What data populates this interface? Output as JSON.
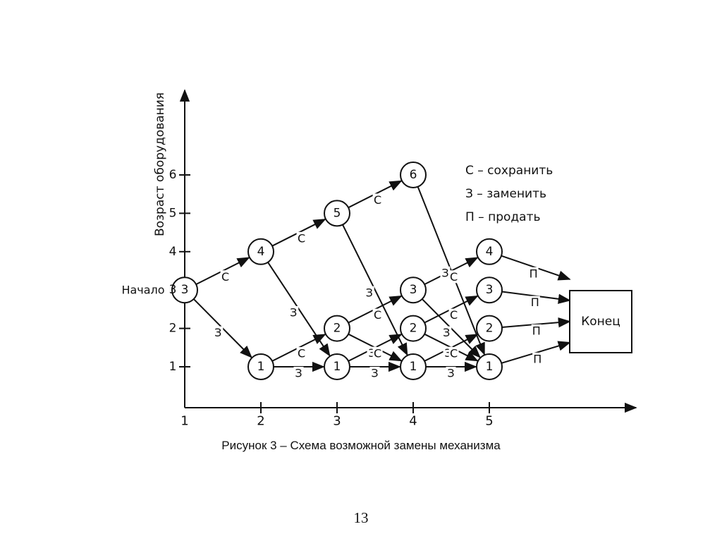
{
  "diagram": {
    "y_axis_label": "Возраст оборудования",
    "y_ticks": [
      "1",
      "2",
      "3",
      "4",
      "5",
      "6"
    ],
    "x_ticks": [
      "1",
      "2",
      "3",
      "4",
      "5"
    ],
    "start_label": "Начало",
    "end_label": "Конец",
    "legend": [
      "С – сохранить",
      "З – заменить",
      "П – продать"
    ],
    "nodes": [
      {
        "id": "s3",
        "stage": 1,
        "age": 3,
        "label": "3"
      },
      {
        "id": "a4",
        "stage": 2,
        "age": 4,
        "label": "4"
      },
      {
        "id": "a1",
        "stage": 2,
        "age": 1,
        "label": "1"
      },
      {
        "id": "b5",
        "stage": 3,
        "age": 5,
        "label": "5"
      },
      {
        "id": "b2",
        "stage": 3,
        "age": 2,
        "label": "2"
      },
      {
        "id": "b1",
        "stage": 3,
        "age": 1,
        "label": "1"
      },
      {
        "id": "c6",
        "stage": 4,
        "age": 6,
        "label": "6"
      },
      {
        "id": "c3",
        "stage": 4,
        "age": 3,
        "label": "3"
      },
      {
        "id": "c2",
        "stage": 4,
        "age": 2,
        "label": "2"
      },
      {
        "id": "c1",
        "stage": 4,
        "age": 1,
        "label": "1"
      },
      {
        "id": "d4",
        "stage": 5,
        "age": 4,
        "label": "4"
      },
      {
        "id": "d3",
        "stage": 5,
        "age": 3,
        "label": "3"
      },
      {
        "id": "d2",
        "stage": 5,
        "age": 2,
        "label": "2"
      },
      {
        "id": "d1",
        "stage": 5,
        "age": 1,
        "label": "1"
      }
    ],
    "edges": [
      {
        "from": "s3",
        "to": "a4",
        "label": "С"
      },
      {
        "from": "s3",
        "to": "a1",
        "label": "З"
      },
      {
        "from": "a4",
        "to": "b5",
        "label": "С"
      },
      {
        "from": "a4",
        "to": "b1",
        "label": "З"
      },
      {
        "from": "a1",
        "to": "b2",
        "label": "С"
      },
      {
        "from": "a1",
        "to": "b1",
        "label": "З"
      },
      {
        "from": "b5",
        "to": "c6",
        "label": "С"
      },
      {
        "from": "b5",
        "to": "c1",
        "label": "З"
      },
      {
        "from": "b2",
        "to": "c3",
        "label": "С"
      },
      {
        "from": "b2",
        "to": "c1",
        "label": "З"
      },
      {
        "from": "b1",
        "to": "c2",
        "label": "С"
      },
      {
        "from": "b1",
        "to": "c1",
        "label": "З"
      },
      {
        "from": "c6",
        "to": "d1",
        "label": "З"
      },
      {
        "from": "c3",
        "to": "d4",
        "label": "С"
      },
      {
        "from": "c3",
        "to": "d1",
        "label": "З"
      },
      {
        "from": "c2",
        "to": "d3",
        "label": "С"
      },
      {
        "from": "c2",
        "to": "d1",
        "label": "З"
      },
      {
        "from": "c1",
        "to": "d2",
        "label": "С"
      },
      {
        "from": "c1",
        "to": "d1",
        "label": "З"
      },
      {
        "from": "d4",
        "to": "end",
        "label": "П"
      },
      {
        "from": "d3",
        "to": "end",
        "label": "П"
      },
      {
        "from": "d2",
        "to": "end",
        "label": "П"
      },
      {
        "from": "d1",
        "to": "end",
        "label": "П"
      }
    ]
  },
  "caption": "Рисунок 3 – Схема возможной замены механизма",
  "page_number": "13"
}
